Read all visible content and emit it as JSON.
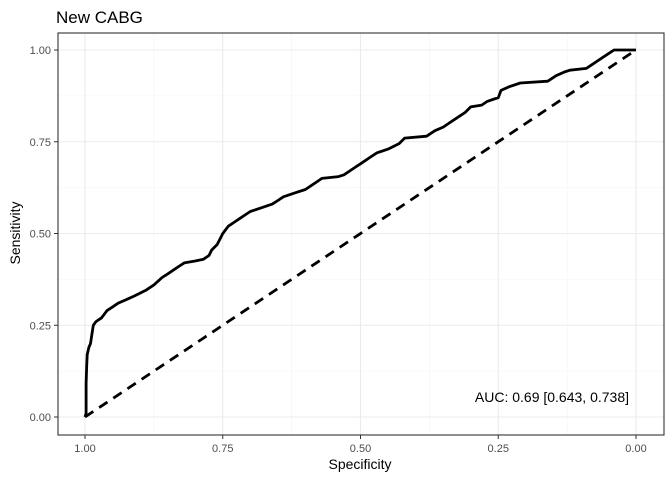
{
  "chart_data": {
    "type": "line",
    "title": "New CABG",
    "xlabel": "Specificity",
    "ylabel": "Sensitivity",
    "x_reversed": true,
    "xlim": [
      1.0,
      0.0
    ],
    "ylim": [
      0.0,
      1.0
    ],
    "x_ticks": [
      1.0,
      0.75,
      0.5,
      0.25,
      0.0
    ],
    "x_tick_labels": [
      "1.00",
      "0.75",
      "0.50",
      "0.25",
      "0.00"
    ],
    "y_ticks": [
      0.0,
      0.25,
      0.5,
      0.75,
      1.0
    ],
    "y_tick_labels": [
      "0.00",
      "0.25",
      "0.50",
      "0.75",
      "1.00"
    ],
    "grid": true,
    "annotation": "AUC: 0.69 [0.643, 0.738]",
    "series": [
      {
        "style": "solid",
        "color": "#000000",
        "points": [
          [
            1.0,
            0.0
          ],
          [
            0.998,
            0.01
          ],
          [
            0.998,
            0.09
          ],
          [
            0.997,
            0.14
          ],
          [
            0.996,
            0.17
          ],
          [
            0.993,
            0.19
          ],
          [
            0.99,
            0.2
          ],
          [
            0.988,
            0.22
          ],
          [
            0.985,
            0.25
          ],
          [
            0.98,
            0.26
          ],
          [
            0.975,
            0.265
          ],
          [
            0.97,
            0.27
          ],
          [
            0.965,
            0.28
          ],
          [
            0.96,
            0.29
          ],
          [
            0.95,
            0.3
          ],
          [
            0.94,
            0.31
          ],
          [
            0.925,
            0.32
          ],
          [
            0.91,
            0.33
          ],
          [
            0.89,
            0.345
          ],
          [
            0.875,
            0.36
          ],
          [
            0.86,
            0.38
          ],
          [
            0.85,
            0.39
          ],
          [
            0.84,
            0.4
          ],
          [
            0.83,
            0.41
          ],
          [
            0.82,
            0.42
          ],
          [
            0.8,
            0.425
          ],
          [
            0.785,
            0.43
          ],
          [
            0.775,
            0.44
          ],
          [
            0.77,
            0.455
          ],
          [
            0.76,
            0.47
          ],
          [
            0.75,
            0.5
          ],
          [
            0.74,
            0.52
          ],
          [
            0.73,
            0.53
          ],
          [
            0.72,
            0.54
          ],
          [
            0.71,
            0.55
          ],
          [
            0.7,
            0.56
          ],
          [
            0.68,
            0.57
          ],
          [
            0.66,
            0.58
          ],
          [
            0.65,
            0.59
          ],
          [
            0.64,
            0.6
          ],
          [
            0.62,
            0.61
          ],
          [
            0.6,
            0.62
          ],
          [
            0.59,
            0.63
          ],
          [
            0.58,
            0.64
          ],
          [
            0.57,
            0.65
          ],
          [
            0.54,
            0.655
          ],
          [
            0.53,
            0.66
          ],
          [
            0.52,
            0.67
          ],
          [
            0.51,
            0.68
          ],
          [
            0.5,
            0.69
          ],
          [
            0.48,
            0.71
          ],
          [
            0.47,
            0.72
          ],
          [
            0.45,
            0.73
          ],
          [
            0.43,
            0.745
          ],
          [
            0.42,
            0.76
          ],
          [
            0.38,
            0.765
          ],
          [
            0.365,
            0.78
          ],
          [
            0.35,
            0.79
          ],
          [
            0.34,
            0.8
          ],
          [
            0.33,
            0.81
          ],
          [
            0.32,
            0.82
          ],
          [
            0.31,
            0.83
          ],
          [
            0.3,
            0.845
          ],
          [
            0.28,
            0.85
          ],
          [
            0.27,
            0.86
          ],
          [
            0.26,
            0.865
          ],
          [
            0.25,
            0.87
          ],
          [
            0.245,
            0.89
          ],
          [
            0.23,
            0.9
          ],
          [
            0.21,
            0.91
          ],
          [
            0.16,
            0.915
          ],
          [
            0.145,
            0.93
          ],
          [
            0.13,
            0.94
          ],
          [
            0.12,
            0.945
          ],
          [
            0.09,
            0.95
          ],
          [
            0.08,
            0.96
          ],
          [
            0.07,
            0.97
          ],
          [
            0.06,
            0.98
          ],
          [
            0.05,
            0.99
          ],
          [
            0.04,
            1.0
          ],
          [
            0.0,
            1.0
          ]
        ]
      },
      {
        "style": "dashed",
        "color": "#000000",
        "points": [
          [
            1.0,
            0.0
          ],
          [
            0.0,
            1.0
          ]
        ]
      }
    ]
  }
}
